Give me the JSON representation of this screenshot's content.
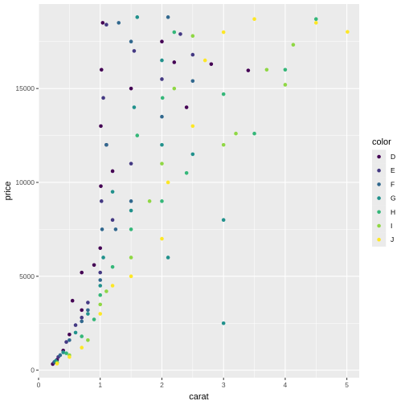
{
  "chart_data": {
    "type": "scatter",
    "xlabel": "carat",
    "ylabel": "price",
    "xlim": [
      0,
      5.2
    ],
    "ylim": [
      -400,
      19500
    ],
    "xticks": [
      0,
      1,
      2,
      3,
      4,
      5
    ],
    "xtick_labels": [
      "0",
      "1",
      "2",
      "3",
      "4",
      "5"
    ],
    "yticks": [
      0,
      5000,
      10000,
      15000
    ],
    "ytick_labels": [
      "0",
      "5000",
      "10000",
      "15000"
    ],
    "grid": true,
    "legend": {
      "title": "color",
      "placement": "right"
    },
    "series": [
      {
        "name": "D",
        "color": "#440154",
        "values": [
          [
            0.23,
            326
          ],
          [
            0.3,
            552
          ],
          [
            0.4,
            1050
          ],
          [
            0.5,
            1900
          ],
          [
            0.55,
            3700
          ],
          [
            0.7,
            3200
          ],
          [
            0.7,
            5200
          ],
          [
            0.9,
            5600
          ],
          [
            1.0,
            6500
          ],
          [
            1.01,
            9800
          ],
          [
            1.01,
            13000
          ],
          [
            1.02,
            16000
          ],
          [
            1.04,
            18500
          ],
          [
            1.1,
            12000
          ],
          [
            1.2,
            10600
          ],
          [
            1.5,
            15000
          ],
          [
            2.0,
            17500
          ],
          [
            2.2,
            16400
          ],
          [
            2.4,
            14000
          ],
          [
            2.8,
            16300
          ],
          [
            3.4,
            15964
          ]
        ]
      },
      {
        "name": "E",
        "color": "#443983",
        "values": [
          [
            0.25,
            400
          ],
          [
            0.32,
            700
          ],
          [
            0.45,
            1500
          ],
          [
            0.6,
            2400
          ],
          [
            0.7,
            2800
          ],
          [
            0.8,
            3600
          ],
          [
            1.0,
            5200
          ],
          [
            1.02,
            9000
          ],
          [
            1.05,
            14500
          ],
          [
            1.1,
            18400
          ],
          [
            1.2,
            8000
          ],
          [
            1.5,
            11000
          ],
          [
            1.55,
            17000
          ],
          [
            2.0,
            15500
          ],
          [
            2.3,
            17900
          ],
          [
            2.5,
            16800
          ]
        ]
      },
      {
        "name": "F",
        "color": "#31688e",
        "values": [
          [
            0.26,
            450
          ],
          [
            0.35,
            800
          ],
          [
            0.5,
            1600
          ],
          [
            0.7,
            2600
          ],
          [
            0.8,
            3200
          ],
          [
            1.0,
            4800
          ],
          [
            1.03,
            7500
          ],
          [
            1.1,
            12000
          ],
          [
            1.25,
            7500
          ],
          [
            1.3,
            18500
          ],
          [
            1.5,
            9000
          ],
          [
            1.5,
            17500
          ],
          [
            2.0,
            13500
          ],
          [
            2.1,
            18800
          ],
          [
            2.5,
            15400
          ]
        ]
      },
      {
        "name": "G",
        "color": "#21918c",
        "values": [
          [
            0.28,
            500
          ],
          [
            0.4,
            950
          ],
          [
            0.6,
            2000
          ],
          [
            0.8,
            3000
          ],
          [
            1.0,
            4500
          ],
          [
            1.05,
            6000
          ],
          [
            1.2,
            9500
          ],
          [
            1.5,
            8500
          ],
          [
            1.55,
            14000
          ],
          [
            1.6,
            18800
          ],
          [
            2.0,
            12000
          ],
          [
            2.0,
            16500
          ],
          [
            2.1,
            6000
          ],
          [
            2.5,
            11500
          ],
          [
            3.0,
            8000
          ],
          [
            3.0,
            2500
          ]
        ]
      },
      {
        "name": "H",
        "color": "#35b779",
        "values": [
          [
            0.3,
            420
          ],
          [
            0.45,
            900
          ],
          [
            0.7,
            1800
          ],
          [
            0.9,
            2700
          ],
          [
            1.0,
            4000
          ],
          [
            1.2,
            5500
          ],
          [
            1.5,
            7500
          ],
          [
            1.6,
            12500
          ],
          [
            2.0,
            9000
          ],
          [
            2.01,
            14500
          ],
          [
            2.2,
            18000
          ],
          [
            2.4,
            10500
          ],
          [
            3.0,
            14700
          ],
          [
            3.5,
            12600
          ],
          [
            4.0,
            16000
          ],
          [
            4.5,
            18700
          ]
        ]
      },
      {
        "name": "I",
        "color": "#8fd744",
        "values": [
          [
            0.3,
            380
          ],
          [
            0.5,
            800
          ],
          [
            0.8,
            1600
          ],
          [
            1.0,
            3500
          ],
          [
            1.1,
            4200
          ],
          [
            1.5,
            6000
          ],
          [
            1.8,
            9000
          ],
          [
            2.0,
            11000
          ],
          [
            2.2,
            15000
          ],
          [
            2.5,
            17800
          ],
          [
            3.0,
            12000
          ],
          [
            3.2,
            12600
          ],
          [
            3.7,
            16000
          ],
          [
            4.0,
            15200
          ],
          [
            4.13,
            17329
          ]
        ]
      },
      {
        "name": "J",
        "color": "#fde725",
        "values": [
          [
            0.3,
            350
          ],
          [
            0.5,
            700
          ],
          [
            0.7,
            1200
          ],
          [
            1.0,
            3000
          ],
          [
            1.2,
            4500
          ],
          [
            1.5,
            5000
          ],
          [
            2.0,
            7000
          ],
          [
            2.1,
            10000
          ],
          [
            2.5,
            13000
          ],
          [
            2.7,
            16500
          ],
          [
            3.0,
            18000
          ],
          [
            3.5,
            18700
          ],
          [
            4.5,
            18500
          ],
          [
            5.01,
            18018
          ]
        ]
      }
    ]
  }
}
